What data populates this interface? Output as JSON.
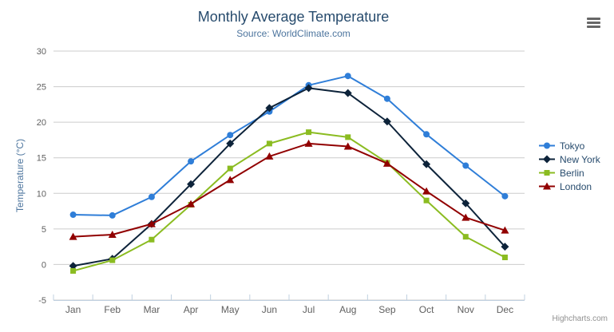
{
  "chart_data": {
    "type": "line",
    "title": "Monthly Average Temperature",
    "subtitle": "Source: WorldClimate.com",
    "categories": [
      "Jan",
      "Feb",
      "Mar",
      "Apr",
      "May",
      "Jun",
      "Jul",
      "Aug",
      "Sep",
      "Oct",
      "Nov",
      "Dec"
    ],
    "series": [
      {
        "name": "Tokyo",
        "color": "#2f7ed8",
        "marker": "circle",
        "values": [
          7.0,
          6.9,
          9.5,
          14.5,
          18.2,
          21.5,
          25.2,
          26.5,
          23.3,
          18.3,
          13.9,
          9.6
        ]
      },
      {
        "name": "New York",
        "color": "#0d233a",
        "marker": "diamond",
        "values": [
          -0.2,
          0.8,
          5.7,
          11.3,
          17.0,
          22.0,
          24.8,
          24.1,
          20.1,
          14.1,
          8.6,
          2.5
        ]
      },
      {
        "name": "Berlin",
        "color": "#8bbc21",
        "marker": "square",
        "values": [
          -0.9,
          0.6,
          3.5,
          8.4,
          13.5,
          17.0,
          18.6,
          17.9,
          14.3,
          9.0,
          3.9,
          1.0
        ]
      },
      {
        "name": "London",
        "color": "#910000",
        "marker": "triangle",
        "values": [
          3.9,
          4.2,
          5.7,
          8.5,
          11.9,
          15.2,
          17.0,
          16.6,
          14.2,
          10.3,
          6.6,
          4.8
        ]
      }
    ],
    "xlabel": "",
    "ylabel": "Temperature (°C)",
    "ylim": [
      -5,
      30
    ],
    "ytick_step": 5,
    "grid": true,
    "legend_position": "right-middle"
  },
  "credits": {
    "label": "Highcharts.com"
  },
  "colors": {
    "title": "#274b6d",
    "subtitle": "#4d759e",
    "axis_label": "#606060",
    "axis_title": "#4d759e",
    "gridline": "#cccccc",
    "axis_line": "#c0d0e0",
    "legend_text": "#274b6d",
    "credits": "#909090",
    "menu_icon": "#666666"
  }
}
